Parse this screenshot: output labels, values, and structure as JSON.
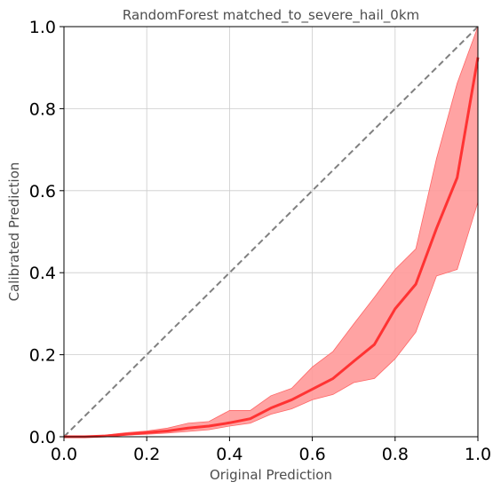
{
  "chart_data": {
    "type": "line",
    "title": "RandomForest matched_to_severe_hail_0km",
    "xlabel": "Original Prediction",
    "ylabel": "Calibrated Prediction",
    "xlim": [
      0,
      1
    ],
    "ylim": [
      0,
      1
    ],
    "grid": true,
    "xticks": [
      "0.0",
      "0.2",
      "0.4",
      "0.6",
      "0.8",
      "1.0"
    ],
    "yticks": [
      "0.0",
      "0.2",
      "0.4",
      "0.6",
      "0.8",
      "1.0"
    ],
    "reference_line": {
      "x": [
        0,
        1
      ],
      "y": [
        0,
        1
      ],
      "color": "#808080",
      "style": "dashed"
    },
    "series": [
      {
        "color": "#ff3333",
        "band_color": "#ff9999",
        "x": [
          0.0,
          0.05,
          0.1,
          0.15,
          0.2,
          0.25,
          0.3,
          0.35,
          0.4,
          0.45,
          0.5,
          0.55,
          0.6,
          0.65,
          0.7,
          0.75,
          0.8,
          0.85,
          0.9,
          0.95,
          1.0
        ],
        "y": [
          0.0,
          0.0,
          0.002,
          0.006,
          0.01,
          0.014,
          0.021,
          0.026,
          0.034,
          0.044,
          0.07,
          0.09,
          0.116,
          0.142,
          0.184,
          0.225,
          0.312,
          0.372,
          0.508,
          0.632,
          0.925
        ],
        "lower": [
          0.0,
          0.0,
          0.001,
          0.004,
          0.006,
          0.009,
          0.013,
          0.017,
          0.026,
          0.033,
          0.055,
          0.068,
          0.09,
          0.103,
          0.132,
          0.142,
          0.19,
          0.255,
          0.392,
          0.408,
          0.572
        ],
        "upper": [
          0.0,
          0.001,
          0.004,
          0.01,
          0.014,
          0.021,
          0.033,
          0.037,
          0.064,
          0.064,
          0.1,
          0.118,
          0.17,
          0.208,
          0.275,
          0.34,
          0.408,
          0.458,
          0.678,
          0.862,
          1.0
        ]
      }
    ]
  }
}
